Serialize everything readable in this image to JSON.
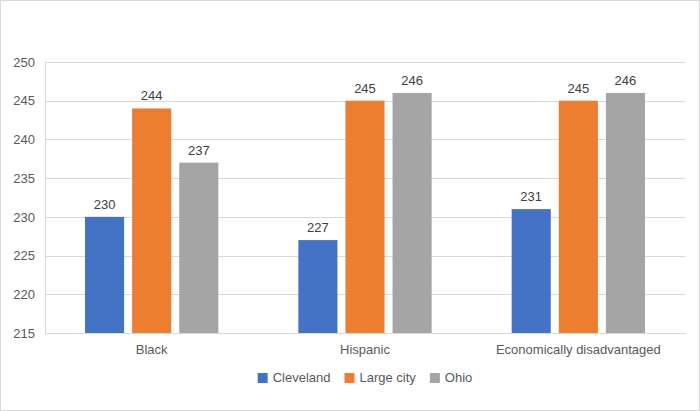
{
  "chart_data": {
    "type": "bar",
    "categories": [
      "Black",
      "Hispanic",
      "Economically disadvantaged"
    ],
    "series": [
      {
        "name": "Cleveland",
        "color": "#4472c4",
        "values": [
          230,
          227,
          231
        ]
      },
      {
        "name": "Large city",
        "color": "#ed7d31",
        "values": [
          244,
          245,
          245
        ]
      },
      {
        "name": "Ohio",
        "color": "#a5a5a5",
        "values": [
          237,
          246,
          246
        ]
      }
    ],
    "ylim": [
      215,
      250
    ],
    "yticks": [
      215,
      220,
      225,
      230,
      235,
      240,
      245,
      250
    ],
    "grid": true,
    "data_labels": true,
    "legend": "bottom"
  }
}
